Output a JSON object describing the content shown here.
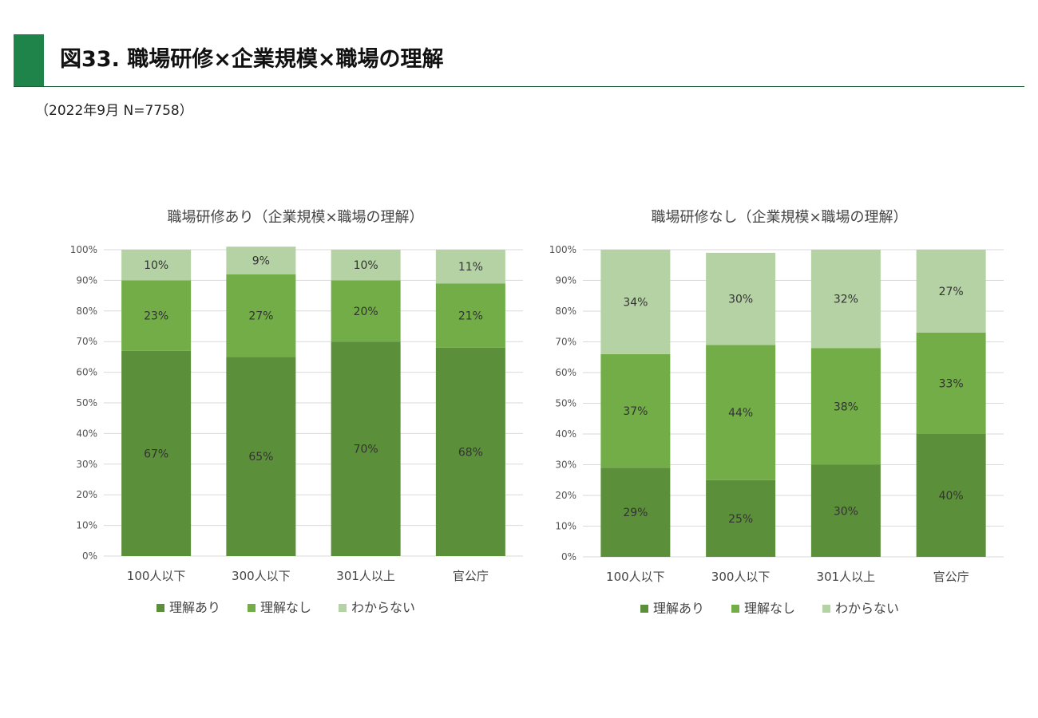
{
  "header": {
    "title": "図33. 職場研修×企業規模×職場の理解",
    "subtitle": "（2022年9月 N=7758）"
  },
  "colors": {
    "accent": "#1e8449",
    "rikai_ari": "#5b8f3a",
    "rikai_nashi": "#72ad47",
    "wakaranai": "#b5d2a4"
  },
  "chart_data": [
    {
      "type": "bar",
      "stacked": true,
      "title": "職場研修あり（企業規模×職場の理解）",
      "categories": [
        "100人以下",
        "300人以下",
        "301人以上",
        "官公庁"
      ],
      "ylim": [
        0,
        100
      ],
      "yticks": [
        "0%",
        "10%",
        "20%",
        "30%",
        "40%",
        "50%",
        "60%",
        "70%",
        "80%",
        "90%",
        "100%"
      ],
      "grid": true,
      "legend": "bottom",
      "series": [
        {
          "name": "理解あり",
          "values": [
            67,
            65,
            70,
            68
          ],
          "labels": [
            "67%",
            "65%",
            "70%",
            "68%"
          ]
        },
        {
          "name": "理解なし",
          "values": [
            23,
            27,
            20,
            21
          ],
          "labels": [
            "23%",
            "27%",
            "20%",
            "21%"
          ]
        },
        {
          "name": "わからない",
          "values": [
            10,
            9,
            10,
            11
          ],
          "labels": [
            "10%",
            "9%",
            "10%",
            "11%"
          ]
        }
      ]
    },
    {
      "type": "bar",
      "stacked": true,
      "title": "職場研修なし（企業規模×職場の理解）",
      "categories": [
        "100人以下",
        "300人以下",
        "301人以上",
        "官公庁"
      ],
      "ylim": [
        0,
        100
      ],
      "yticks": [
        "0%",
        "10%",
        "20%",
        "30%",
        "40%",
        "50%",
        "60%",
        "70%",
        "80%",
        "90%",
        "100%"
      ],
      "grid": true,
      "legend": "bottom",
      "series": [
        {
          "name": "理解あり",
          "values": [
            29,
            25,
            30,
            40
          ],
          "labels": [
            "29%",
            "25%",
            "30%",
            "40%"
          ]
        },
        {
          "name": "理解なし",
          "values": [
            37,
            44,
            38,
            33
          ],
          "labels": [
            "37%",
            "44%",
            "38%",
            "33%"
          ]
        },
        {
          "name": "わからない",
          "values": [
            34,
            30,
            32,
            27
          ],
          "labels": [
            "34%",
            "30%",
            "32%",
            "27%"
          ]
        }
      ]
    }
  ]
}
